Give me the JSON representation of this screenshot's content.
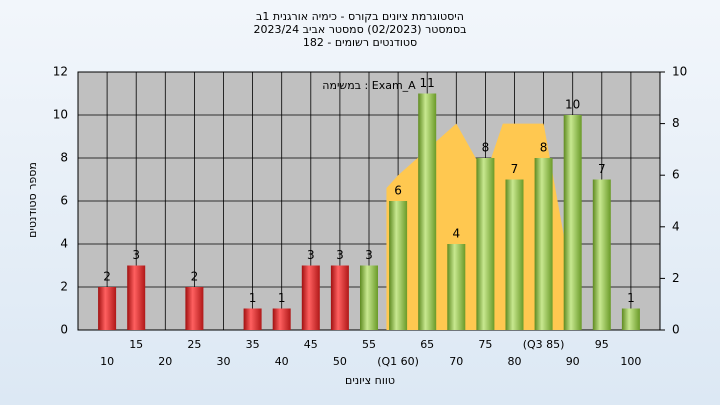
{
  "chart_data": {
    "type": "bar",
    "title": [
      "היסטוגרמת ציונים בקורס - כימיה אורגנית 1ב",
      "בסמסטר  (02/2023)  סמסטר אביב 2023/24",
      "סטודנטים רשומים - 182"
    ],
    "annotation": "במשימה : Exam_A",
    "xlabel": "טווח ציונים",
    "ylabel": "מספר סטודנטים",
    "x": [
      10,
      15,
      25,
      35,
      40,
      45,
      50,
      55,
      60,
      65,
      70,
      75,
      80,
      85,
      90,
      95,
      100
    ],
    "values": [
      2,
      3,
      2,
      1,
      1,
      3,
      3,
      3,
      6,
      11,
      4,
      8,
      7,
      8,
      10,
      7,
      1
    ],
    "colors": [
      "red",
      "red",
      "red",
      "red",
      "red",
      "red",
      "red",
      "green",
      "green",
      "green",
      "green",
      "green",
      "green",
      "green",
      "green",
      "green",
      "green"
    ],
    "xlim": [
      5,
      105
    ],
    "xticks": [
      10,
      15,
      20,
      25,
      30,
      35,
      40,
      45,
      50,
      55,
      {
        "value": 60,
        "label": "(Q1 60)"
      },
      65,
      70,
      75,
      80,
      {
        "value": 85,
        "label": "(Q3 85)"
      },
      90,
      95,
      100
    ],
    "ylim": [
      0,
      12
    ],
    "yticks": [
      0,
      2,
      4,
      6,
      8,
      10,
      12
    ],
    "y2lim": [
      0,
      10
    ],
    "y2ticks": [
      0,
      2,
      4,
      6,
      8,
      10
    ],
    "grid": true,
    "overlay": {
      "type": "area",
      "axis": "y2",
      "color": "#ffc850",
      "x": [
        58,
        60,
        70,
        75,
        78,
        85,
        89
      ],
      "values": [
        5.5,
        6,
        8,
        6,
        8,
        8,
        3
      ]
    }
  }
}
